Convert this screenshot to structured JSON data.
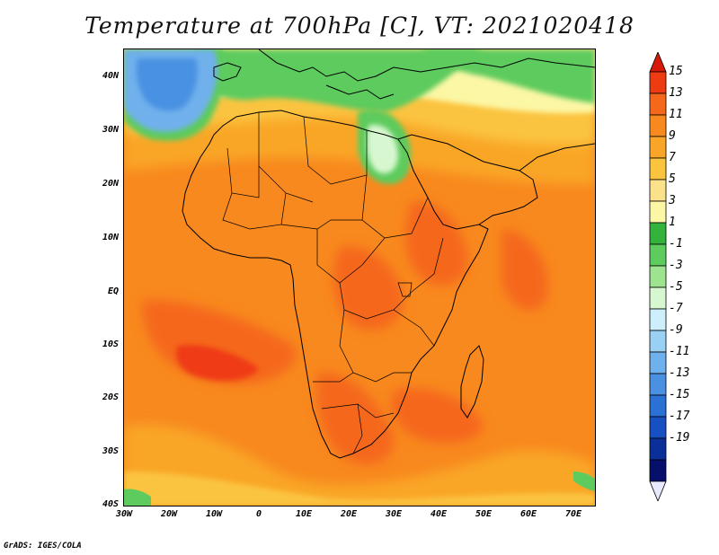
{
  "title": "Temperature at 700hPa [C], VT: 2021020418",
  "credit": "GrADS: IGES/COLA",
  "map": {
    "projection": "latitude-longitude",
    "lon_range": [
      -30,
      75
    ],
    "lat_range": [
      -40,
      45
    ],
    "lat_labels": [
      "40N",
      "30N",
      "20N",
      "10N",
      "EQ",
      "10S",
      "20S",
      "30S",
      "40S"
    ],
    "lon_labels": [
      "30W",
      "20W",
      "10W",
      "0",
      "10E",
      "20E",
      "30E",
      "40E",
      "50E",
      "60E",
      "70E"
    ],
    "coastline_color": "#000000"
  },
  "colorbar": {
    "labels": [
      "15",
      "13",
      "11",
      "9",
      "7",
      "5",
      "3",
      "1",
      "-1",
      "-3",
      "-5",
      "-7",
      "-9",
      "-11",
      "-13",
      "-15",
      "-17",
      "-19"
    ],
    "colors_top_to_bottom": [
      "#d7190a",
      "#ef3b12",
      "#f5681c",
      "#f8891e",
      "#f9a628",
      "#fbc43f",
      "#fbe28a",
      "#fcf7a5",
      "#33b33c",
      "#5dcb5d",
      "#9ee38f",
      "#d7f7d0",
      "#cdeffb",
      "#9bd0f5",
      "#6fb1ec",
      "#4a91e2",
      "#2a70d5",
      "#1650c2",
      "#0b2f98",
      "#06106b",
      "#e8e8ff"
    ]
  }
}
